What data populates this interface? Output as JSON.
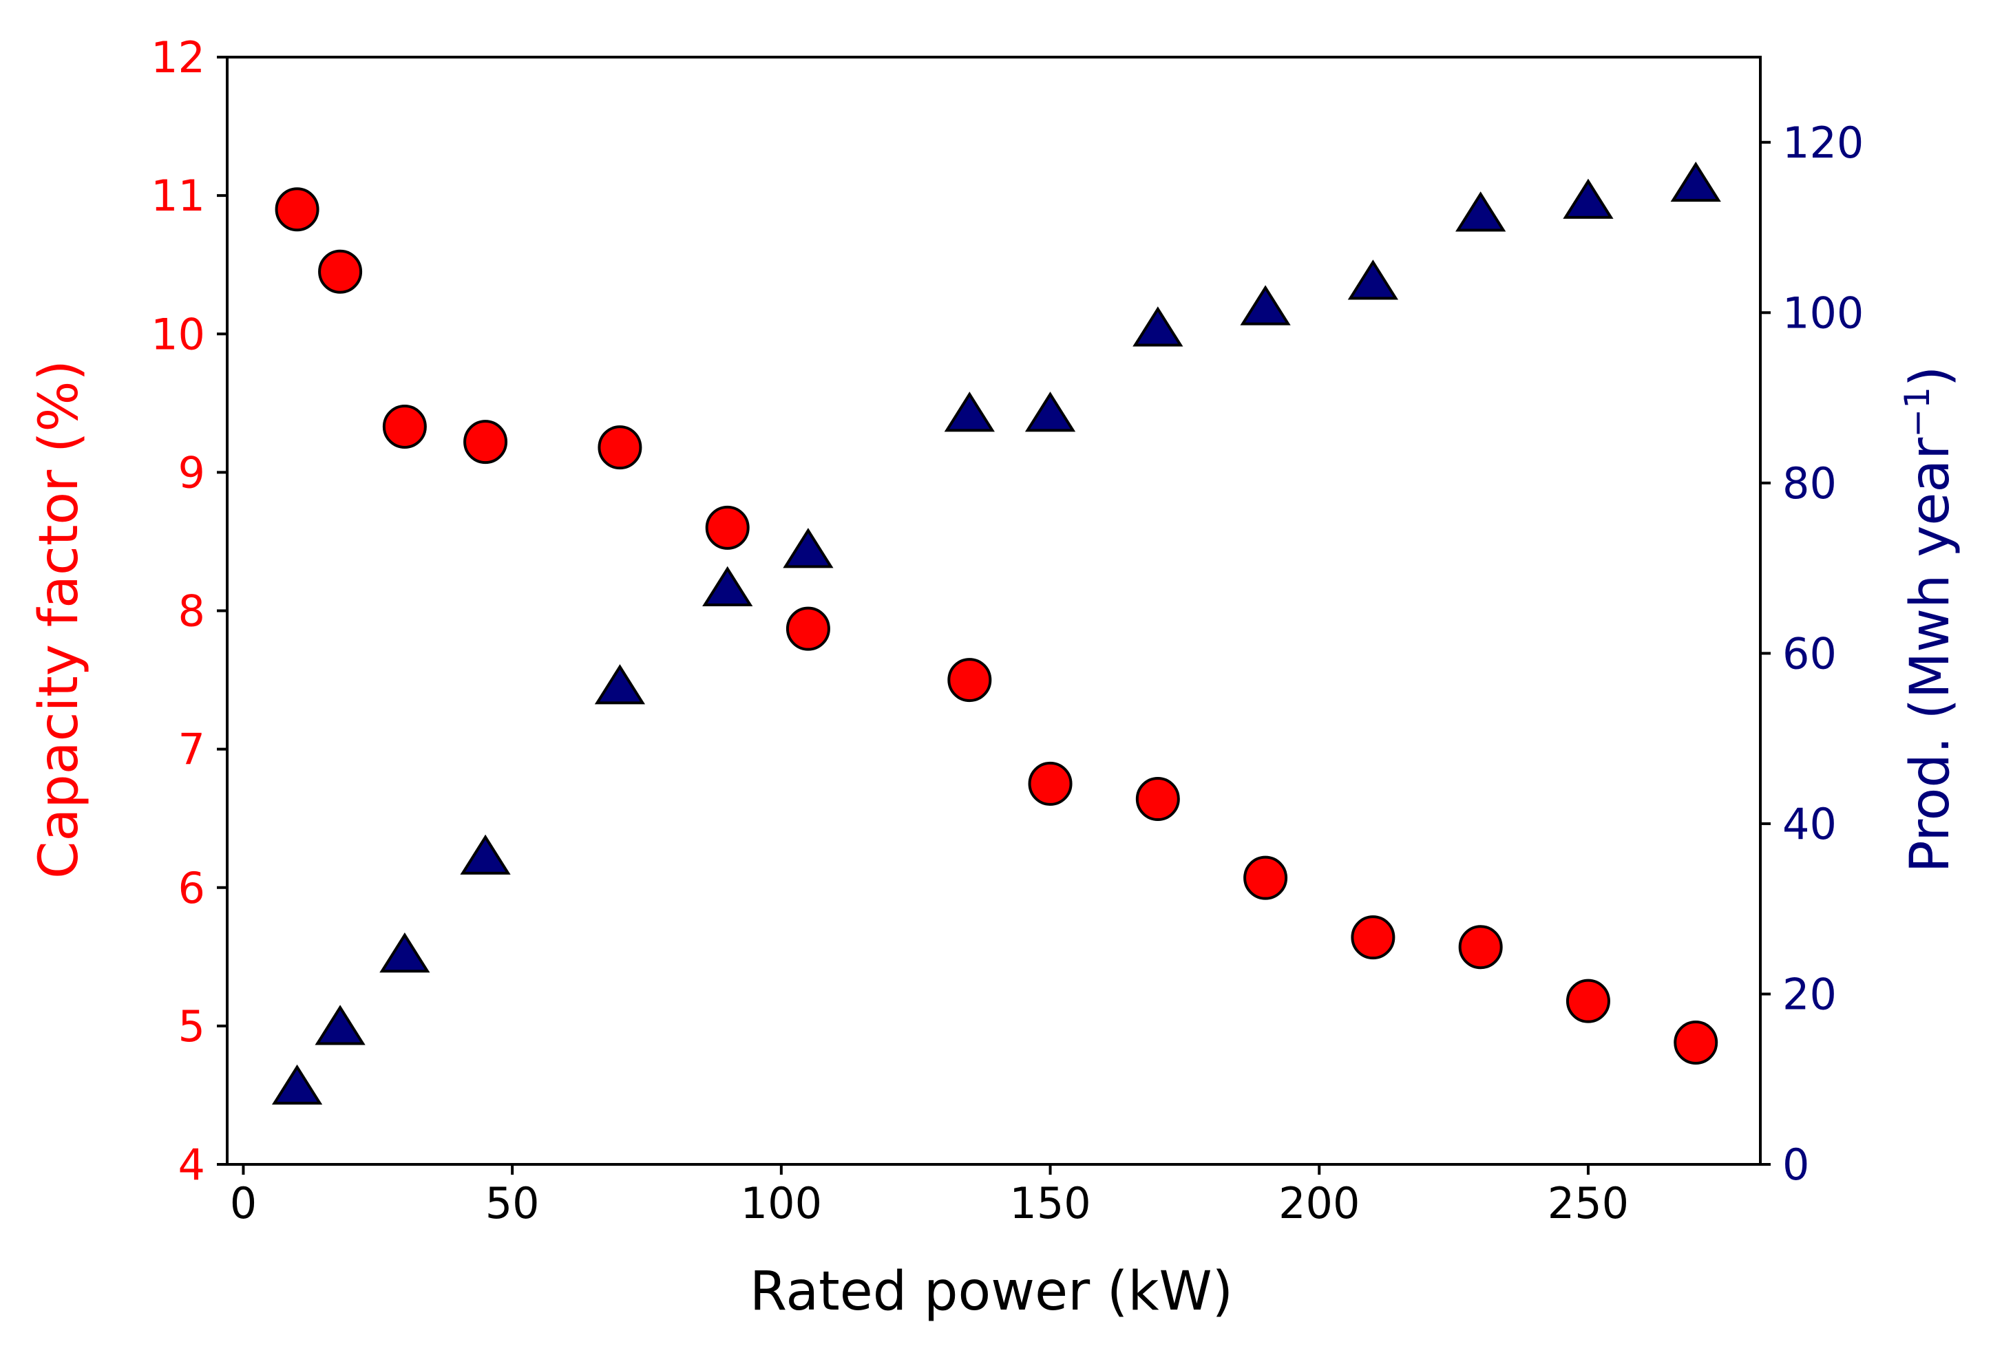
{
  "chart_data": {
    "type": "scatter",
    "x_axis": {
      "label": "Rated power (kW)",
      "range": [
        -3,
        282
      ],
      "ticks": [
        0,
        50,
        100,
        150,
        200,
        250
      ]
    },
    "left_axis": {
      "label": "Capacity factor (%)",
      "range": [
        4,
        12
      ],
      "ticks": [
        4,
        5,
        6,
        7,
        8,
        9,
        10,
        11,
        12
      ],
      "color": "#ff0000"
    },
    "right_axis": {
      "label_main": "Prod. (Mwh year",
      "label_sup": "−1",
      "label_close": ")",
      "range": [
        0,
        130
      ],
      "ticks": [
        0,
        20,
        40,
        60,
        80,
        100,
        120
      ],
      "color": "#00007a"
    },
    "series": [
      {
        "name": "Capacity factor",
        "axis": "left",
        "marker": "circle",
        "fill": "#ff0000",
        "points": [
          {
            "x": 10,
            "y": 10.9
          },
          {
            "x": 18,
            "y": 10.45
          },
          {
            "x": 30,
            "y": 9.33
          },
          {
            "x": 45,
            "y": 9.22
          },
          {
            "x": 70,
            "y": 9.18
          },
          {
            "x": 90,
            "y": 8.6
          },
          {
            "x": 105,
            "y": 7.87
          },
          {
            "x": 135,
            "y": 7.5
          },
          {
            "x": 150,
            "y": 6.75
          },
          {
            "x": 170,
            "y": 6.64
          },
          {
            "x": 190,
            "y": 6.07
          },
          {
            "x": 210,
            "y": 5.64
          },
          {
            "x": 230,
            "y": 5.57
          },
          {
            "x": 250,
            "y": 5.18
          },
          {
            "x": 270,
            "y": 4.88
          }
        ]
      },
      {
        "name": "Production",
        "axis": "right",
        "marker": "triangle",
        "fill": "#00007a",
        "points": [
          {
            "x": 10,
            "y": 9
          },
          {
            "x": 18,
            "y": 16
          },
          {
            "x": 30,
            "y": 24.5
          },
          {
            "x": 45,
            "y": 36
          },
          {
            "x": 70,
            "y": 56
          },
          {
            "x": 90,
            "y": 67.5
          },
          {
            "x": 105,
            "y": 72
          },
          {
            "x": 135,
            "y": 88
          },
          {
            "x": 150,
            "y": 88
          },
          {
            "x": 170,
            "y": 98
          },
          {
            "x": 190,
            "y": 100.5
          },
          {
            "x": 210,
            "y": 103.5
          },
          {
            "x": 230,
            "y": 111.5
          },
          {
            "x": 250,
            "y": 113
          },
          {
            "x": 270,
            "y": 115
          }
        ]
      }
    ]
  }
}
